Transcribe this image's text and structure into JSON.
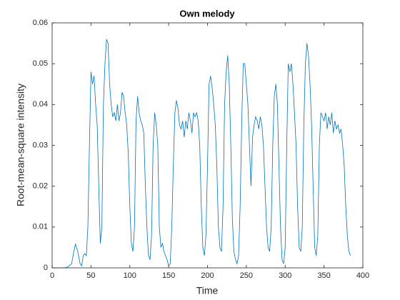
{
  "chart_data": {
    "type": "line",
    "title": "Own melody",
    "xlabel": "Time",
    "ylabel": "Root-mean-square intensity",
    "xlim": [
      0,
      400
    ],
    "xticks": [
      0,
      50,
      100,
      150,
      200,
      250,
      300,
      350,
      400
    ],
    "ylim": [
      0,
      0.06
    ],
    "yticks": [
      0,
      0.01,
      0.02,
      0.03,
      0.04,
      0.05,
      0.06
    ],
    "series": [
      {
        "name": "Own melody",
        "color": "#0072bd",
        "x": [
          0,
          5,
          10,
          15,
          20,
          25,
          28,
          30,
          33,
          36,
          38,
          40,
          42,
          44,
          46,
          48,
          50,
          52,
          54,
          56,
          58,
          60,
          62,
          64,
          66,
          68,
          70,
          72,
          74,
          76,
          78,
          80,
          82,
          84,
          86,
          88,
          90,
          92,
          94,
          96,
          98,
          100,
          102,
          104,
          106,
          108,
          110,
          112,
          114,
          116,
          118,
          120,
          122,
          124,
          126,
          128,
          130,
          132,
          134,
          136,
          138,
          140,
          142,
          144,
          146,
          148,
          150,
          152,
          154,
          156,
          158,
          160,
          162,
          164,
          166,
          168,
          170,
          172,
          174,
          176,
          178,
          180,
          182,
          184,
          186,
          188,
          190,
          192,
          194,
          196,
          198,
          200,
          202,
          204,
          206,
          208,
          210,
          212,
          214,
          216,
          218,
          220,
          222,
          224,
          226,
          228,
          230,
          232,
          234,
          236,
          238,
          240,
          242,
          244,
          246,
          248,
          250,
          252,
          254,
          256,
          258,
          260,
          262,
          264,
          266,
          268,
          270,
          272,
          274,
          276,
          278,
          280,
          282,
          284,
          286,
          288,
          290,
          292,
          294,
          296,
          298,
          300,
          302,
          304,
          306,
          308,
          310,
          312,
          314,
          316,
          318,
          320,
          322,
          324,
          326,
          328,
          330,
          332,
          334,
          336,
          338,
          340,
          342,
          344,
          346,
          348,
          350,
          352,
          354,
          356,
          358,
          360,
          362,
          364,
          366,
          368,
          370,
          372,
          374,
          376,
          378,
          380,
          382,
          384
        ],
        "values": [
          0,
          0,
          0,
          0,
          0.0002,
          0.001,
          0.004,
          0.0058,
          0.004,
          0.001,
          0.0005,
          0.003,
          0.0035,
          0.003,
          0.01,
          0.03,
          0.048,
          0.045,
          0.047,
          0.04,
          0.035,
          0.02,
          0.006,
          0.01,
          0.04,
          0.05,
          0.056,
          0.055,
          0.045,
          0.04,
          0.037,
          0.038,
          0.036,
          0.04,
          0.036,
          0.038,
          0.043,
          0.042,
          0.038,
          0.035,
          0.028,
          0.015,
          0.006,
          0.004,
          0.01,
          0.036,
          0.042,
          0.038,
          0.036,
          0.035,
          0.033,
          0.02,
          0.01,
          0.003,
          0.002,
          0.008,
          0.03,
          0.038,
          0.035,
          0.03,
          0.01,
          0.005,
          0.006,
          0.004,
          0.003,
          0.002,
          0.0005,
          0.001,
          0.01,
          0.025,
          0.038,
          0.041,
          0.039,
          0.035,
          0.034,
          0.036,
          0.032,
          0.036,
          0.034,
          0.038,
          0.036,
          0.033,
          0.038,
          0.037,
          0.038,
          0.036,
          0.03,
          0.015,
          0.005,
          0.003,
          0.008,
          0.025,
          0.045,
          0.047,
          0.044,
          0.04,
          0.035,
          0.025,
          0.01,
          0.005,
          0.004,
          0.015,
          0.04,
          0.048,
          0.052,
          0.045,
          0.03,
          0.012,
          0.004,
          0.002,
          0.001,
          0.003,
          0.015,
          0.035,
          0.05,
          0.05,
          0.045,
          0.04,
          0.03,
          0.02,
          0.032,
          0.035,
          0.037,
          0.036,
          0.034,
          0.037,
          0.035,
          0.03,
          0.02,
          0.01,
          0.005,
          0.004,
          0.01,
          0.03,
          0.042,
          0.045,
          0.04,
          0.025,
          0.01,
          0.002,
          0.001,
          0.005,
          0.03,
          0.05,
          0.048,
          0.05,
          0.045,
          0.038,
          0.03,
          0.015,
          0.005,
          0.004,
          0.01,
          0.035,
          0.05,
          0.055,
          0.052,
          0.045,
          0.035,
          0.02,
          0.005,
          0.003,
          0.008,
          0.03,
          0.038,
          0.037,
          0.036,
          0.038,
          0.034,
          0.037,
          0.035,
          0.038,
          0.033,
          0.036,
          0.034,
          0.035,
          0.033,
          0.034,
          0.03,
          0.025,
          0.015,
          0.008,
          0.004,
          0.003
        ]
      }
    ]
  }
}
